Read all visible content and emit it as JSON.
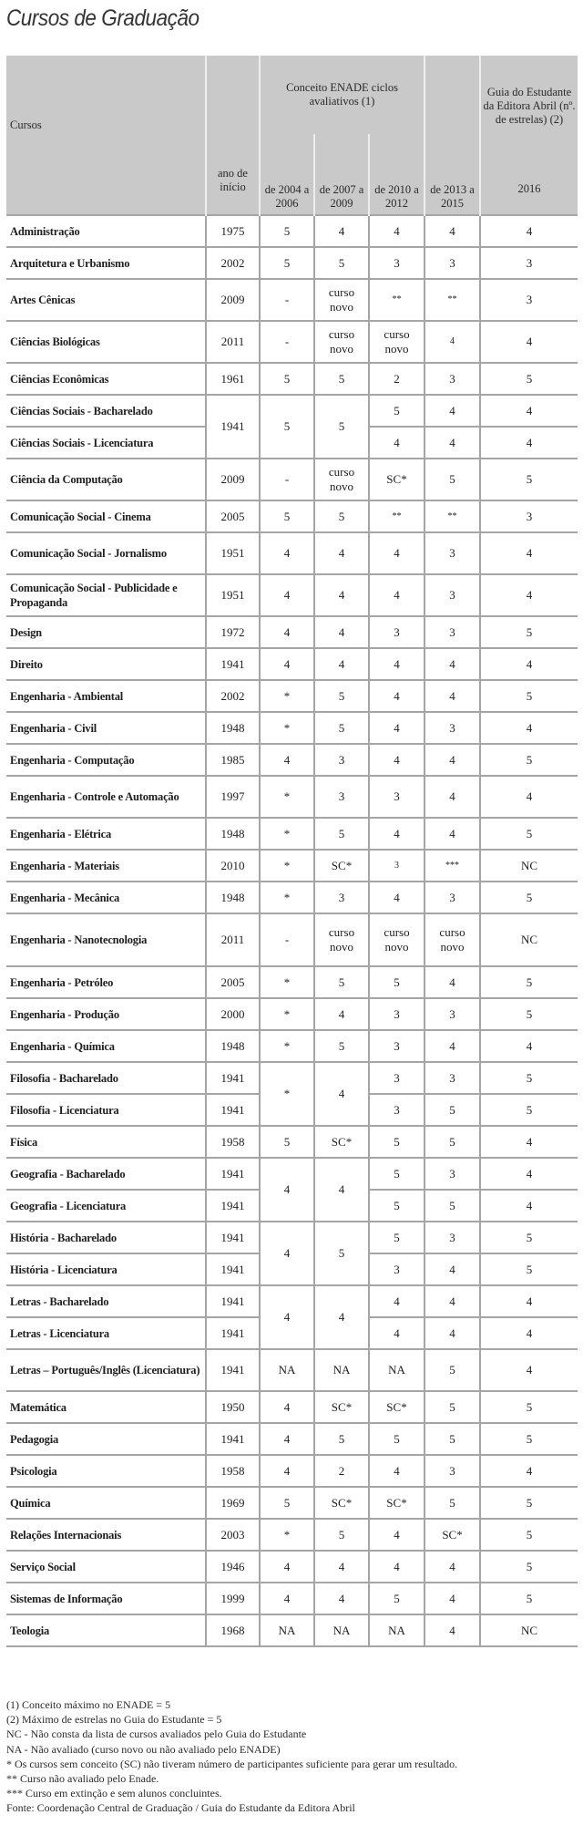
{
  "title": "Cursos de Graduação",
  "header": {
    "cursos": "Cursos",
    "ano": "ano de início",
    "enade_group": "Conceito ENADE ciclos avaliativos (1)",
    "guia_group": "Guia do Estudante da Editora Abril (nº. de estrelas) (2)",
    "periods": [
      "de 2004 a 2006",
      "de 2007 a 2009",
      "de 2010 a 2012",
      "de 2013 a 2015"
    ],
    "guia_year": "2016"
  },
  "rows": [
    {
      "name": "Administração",
      "year": "1975",
      "v": [
        "5",
        "4",
        "4",
        "4"
      ],
      "guia": "4"
    },
    {
      "name": "Arquitetura e Urbanismo",
      "year": "2002",
      "v": [
        "5",
        "5",
        "3",
        "3"
      ],
      "guia": "3"
    },
    {
      "name": "Artes Cênicas",
      "year": "2009",
      "v": [
        "-",
        "curso novo",
        "**",
        "**"
      ],
      "guia": "3"
    },
    {
      "name": "Ciências Biológicas",
      "year": "2011",
      "v": [
        "-",
        "curso novo",
        "curso novo",
        "4"
      ],
      "guia": "4"
    },
    {
      "name": "Ciências Econômicas",
      "year": "1961",
      "v": [
        "5",
        "5",
        "2",
        "3"
      ],
      "guia": "5"
    },
    {
      "name": "Ciências Sociais - Bacharelado",
      "year": "1941",
      "v": [
        "5",
        "5",
        "5",
        "4"
      ],
      "guia": "4"
    },
    {
      "name": "Ciências Sociais - Licenciatura",
      "year": null,
      "v": [
        null,
        null,
        "4",
        "4"
      ],
      "guia": "4"
    },
    {
      "name": "Ciência da Computação",
      "year": "2009",
      "v": [
        "-",
        "curso novo",
        "SC*",
        "5"
      ],
      "guia": "5"
    },
    {
      "name": "Comunicação Social - Cinema",
      "year": "2005",
      "v": [
        "5",
        "5",
        "**",
        "**"
      ],
      "guia": "3"
    },
    {
      "name": "Comunicação Social - Jornalismo",
      "year": "1951",
      "v": [
        "4",
        "4",
        "4",
        "3"
      ],
      "guia": "4"
    },
    {
      "name": "Comunicação Social - Publicidade e Propaganda",
      "year": "1951",
      "v": [
        "4",
        "4",
        "4",
        "3"
      ],
      "guia": "4"
    },
    {
      "name": "Design",
      "year": "1972",
      "v": [
        "4",
        "4",
        "3",
        "3"
      ],
      "guia": "5"
    },
    {
      "name": "Direito",
      "year": "1941",
      "v": [
        "4",
        "4",
        "4",
        "4"
      ],
      "guia": "4"
    },
    {
      "name": "Engenharia - Ambiental",
      "year": "2002",
      "v": [
        "*",
        "5",
        "4",
        "4"
      ],
      "guia": "5"
    },
    {
      "name": "Engenharia - Civil",
      "year": "1948",
      "v": [
        "*",
        "5",
        "4",
        "3"
      ],
      "guia": "4"
    },
    {
      "name": "Engenharia - Computação",
      "year": "1985",
      "v": [
        "4",
        "3",
        "4",
        "4"
      ],
      "guia": "5"
    },
    {
      "name": "Engenharia - Controle e Automação",
      "year": "1997",
      "v": [
        "*",
        "3",
        "3",
        "4"
      ],
      "guia": "4"
    },
    {
      "name": "Engenharia - Elétrica",
      "year": "1948",
      "v": [
        "*",
        "5",
        "4",
        "4"
      ],
      "guia": "5"
    },
    {
      "name": "Engenharia - Materiais",
      "year": "2010",
      "v": [
        "*",
        "SC*",
        "3",
        "***"
      ],
      "guia": "NC"
    },
    {
      "name": "Engenharia - Mecânica",
      "year": "1948",
      "v": [
        "*",
        "3",
        "4",
        "3"
      ],
      "guia": "5"
    },
    {
      "name": "Engenharia - Nanotecnologia",
      "year": "2011",
      "v": [
        "-",
        "curso novo",
        "curso novo",
        "curso novo"
      ],
      "guia": "NC"
    },
    {
      "name": "Engenharia - Petróleo",
      "year": "2005",
      "v": [
        "*",
        "5",
        "5",
        "4"
      ],
      "guia": "5"
    },
    {
      "name": "Engenharia - Produção",
      "year": "2000",
      "v": [
        "*",
        "4",
        "3",
        "3"
      ],
      "guia": "5"
    },
    {
      "name": "Engenharia - Química",
      "year": "1948",
      "v": [
        "*",
        "5",
        "3",
        "4"
      ],
      "guia": "4"
    },
    {
      "name": "Filosofia - Bacharelado",
      "year": "1941",
      "v": [
        "*",
        "4",
        "3",
        "3"
      ],
      "guia": "5"
    },
    {
      "name": "Filosofia - Licenciatura",
      "year": "1941",
      "v": [
        null,
        null,
        "3",
        "5"
      ],
      "guia": "5"
    },
    {
      "name": "Física",
      "year": "1958",
      "v": [
        "5",
        "SC*",
        "5",
        "5"
      ],
      "guia": "4"
    },
    {
      "name": "Geografia - Bacharelado",
      "year": "1941",
      "v": [
        "4",
        "4",
        "5",
        "3"
      ],
      "guia": "4"
    },
    {
      "name": "Geografia - Licenciatura",
      "year": "1941",
      "v": [
        null,
        null,
        "5",
        "5"
      ],
      "guia": "4"
    },
    {
      "name": "História - Bacharelado",
      "year": "1941",
      "v": [
        "4",
        "5",
        "5",
        "3"
      ],
      "guia": "5"
    },
    {
      "name": "História - Licenciatura",
      "year": "1941",
      "v": [
        null,
        null,
        "3",
        "4"
      ],
      "guia": "5"
    },
    {
      "name": "Letras - Bacharelado",
      "year": "1941",
      "v": [
        "4",
        "4",
        "4",
        "4"
      ],
      "guia": "4"
    },
    {
      "name": "Letras - Licenciatura",
      "year": "1941",
      "v": [
        null,
        null,
        "4",
        "4"
      ],
      "guia": "4"
    },
    {
      "name": "Letras – Português/Inglês (Licenciatura)",
      "year": "1941",
      "v": [
        "NA",
        "NA",
        "NA",
        "5"
      ],
      "guia": "4"
    },
    {
      "name": "Matemática",
      "year": "1950",
      "v": [
        "4",
        "SC*",
        "SC*",
        "5"
      ],
      "guia": "5"
    },
    {
      "name": "Pedagogia",
      "year": "1941",
      "v": [
        "4",
        "5",
        "5",
        "5"
      ],
      "guia": "5"
    },
    {
      "name": "Psicologia",
      "year": "1958",
      "v": [
        "4",
        "2",
        "4",
        "3"
      ],
      "guia": "4"
    },
    {
      "name": "Química",
      "year": "1969",
      "v": [
        "5",
        "SC*",
        "SC*",
        "5"
      ],
      "guia": "5"
    },
    {
      "name": "Relações Internacionais",
      "year": "2003",
      "v": [
        "*",
        "5",
        "4",
        "SC*"
      ],
      "guia": "5"
    },
    {
      "name": "Serviço Social",
      "year": "1946",
      "v": [
        "4",
        "4",
        "4",
        "4"
      ],
      "guia": "5"
    },
    {
      "name": "Sistemas de Informação",
      "year": "1999",
      "v": [
        "4",
        "4",
        "5",
        "4"
      ],
      "guia": "5"
    },
    {
      "name": "Teologia",
      "year": "1968",
      "v": [
        "NA",
        "NA",
        "NA",
        "4"
      ],
      "guia": "NC"
    }
  ],
  "notes": [
    "(1) Conceito máximo no ENADE = 5",
    "(2) Máximo de estrelas no Guia do Estudante = 5",
    "NC - Não consta da lista de cursos avaliados pelo Guia do Estudante",
    "NA - Não avaliado (curso novo ou não avaliado pelo ENADE)",
    "* Os cursos sem conceito (SC) não tiveram número de participantes suficiente para gerar um resultado.",
    "** Curso não avaliado pelo Enade.",
    "*** Curso em extinção e sem alunos concluintes.",
    "Fonte: Coordenação Central de Graduação / Guia do Estudante da Editora Abril"
  ]
}
